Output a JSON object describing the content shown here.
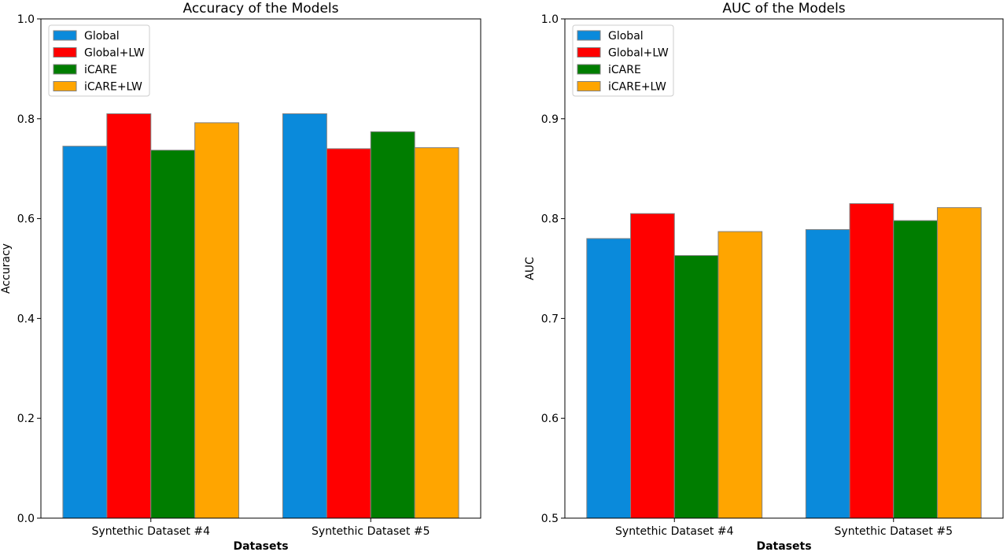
{
  "chart_data": [
    {
      "type": "bar",
      "title": "Accuracy of the Models",
      "xlabel": "Datasets",
      "ylabel": "Accuracy",
      "categories": [
        "Syntethic Dataset #4",
        "Syntethic Dataset #5"
      ],
      "ylim": [
        0.0,
        1.0
      ],
      "yticks": [
        "0.0",
        "0.2",
        "0.4",
        "0.6",
        "0.8",
        "1.0"
      ],
      "grid": false,
      "legend_position": "top-left",
      "series": [
        {
          "name": "Global",
          "color": "#0a8adb",
          "values": [
            0.745,
            0.81
          ]
        },
        {
          "name": "Global+LW",
          "color": "#ff0000",
          "values": [
            0.81,
            0.74
          ]
        },
        {
          "name": "iCARE",
          "color": "#007d00",
          "values": [
            0.737,
            0.774
          ]
        },
        {
          "name": "iCARE+LW",
          "color": "#ffa500",
          "values": [
            0.792,
            0.742
          ]
        }
      ]
    },
    {
      "type": "bar",
      "title": "AUC of the Models",
      "xlabel": "Datasets",
      "ylabel": "AUC",
      "categories": [
        "Syntethic Dataset #4",
        "Syntethic Dataset #5"
      ],
      "ylim": [
        0.5,
        1.0
      ],
      "yticks": [
        "0.5",
        "0.6",
        "0.7",
        "0.8",
        "0.9",
        "1.0"
      ],
      "grid": false,
      "legend_position": "top-left",
      "series": [
        {
          "name": "Global",
          "color": "#0a8adb",
          "values": [
            0.78,
            0.789
          ]
        },
        {
          "name": "Global+LW",
          "color": "#ff0000",
          "values": [
            0.805,
            0.815
          ]
        },
        {
          "name": "iCARE",
          "color": "#007d00",
          "values": [
            0.763,
            0.798
          ]
        },
        {
          "name": "iCARE+LW",
          "color": "#ffa500",
          "values": [
            0.787,
            0.811
          ]
        }
      ]
    }
  ]
}
